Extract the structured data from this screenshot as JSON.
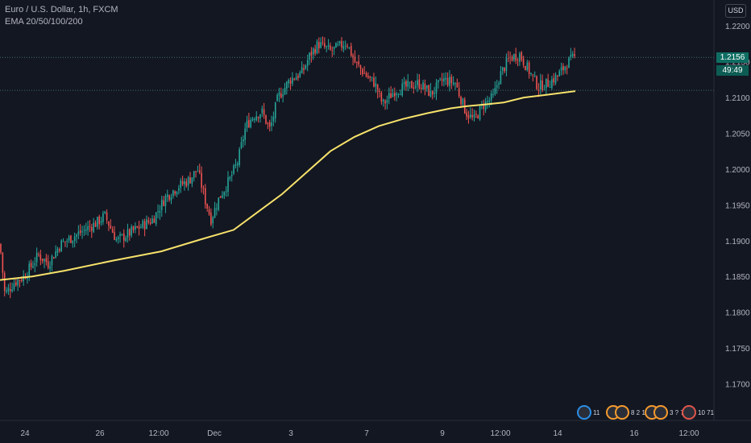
{
  "header": {
    "symbol_line": "Euro / U.S. Dollar, 1h, FXCM",
    "indicator_line": "EMA 20/50/100/200"
  },
  "toolbar": {
    "currency": "USD"
  },
  "price_tags": {
    "last_price": "1.2156",
    "countdown": "49:49"
  },
  "events": [
    {
      "count": "11",
      "color": "blue"
    },
    {
      "count": "8 2 12",
      "color": "orange"
    },
    {
      "count": "3 ? 7",
      "color": "orange"
    },
    {
      "count": "10 71",
      "color": "red"
    }
  ],
  "colors": {
    "up": "#26a69a",
    "down": "#ef5350",
    "ema": "#f7e26b",
    "grid": "#1e222d",
    "background": "#131722"
  },
  "chart_data": {
    "type": "candlestick",
    "title": "Euro / U.S. Dollar, 1h, FXCM",
    "y_ticks": [
      "1.2200",
      "1.2150",
      "1.2100",
      "1.2050",
      "1.2000",
      "1.1950",
      "1.1900",
      "1.1850",
      "1.1800",
      "1.1750",
      "1.1700"
    ],
    "x_ticks": [
      "24",
      "26",
      "12:00",
      "Dec",
      "3",
      "7",
      "9",
      "12:00",
      "14",
      "16",
      "12:00"
    ],
    "ylim": [
      1.166,
      1.2225
    ],
    "last_price": 1.2156,
    "reference_price": 1.211,
    "legend": "top-left",
    "grid": false,
    "close_path": [
      [
        0,
        1.1895
      ],
      [
        6,
        1.1825
      ],
      [
        18,
        1.1842
      ],
      [
        30,
        1.185
      ],
      [
        48,
        1.188
      ],
      [
        60,
        1.1868
      ],
      [
        75,
        1.1895
      ],
      [
        90,
        1.1905
      ],
      [
        105,
        1.1915
      ],
      [
        120,
        1.1925
      ],
      [
        130,
        1.1935
      ],
      [
        145,
        1.19
      ],
      [
        160,
        1.191
      ],
      [
        175,
        1.192
      ],
      [
        190,
        1.193
      ],
      [
        205,
        1.196
      ],
      [
        220,
        1.1975
      ],
      [
        235,
        1.1985
      ],
      [
        245,
        1.2
      ],
      [
        255,
        1.1955
      ],
      [
        262,
        1.193
      ],
      [
        272,
        1.196
      ],
      [
        285,
        1.1985
      ],
      [
        295,
        1.201
      ],
      [
        305,
        1.206
      ],
      [
        315,
        1.2075
      ],
      [
        325,
        1.208
      ],
      [
        335,
        1.2055
      ],
      [
        345,
        1.21
      ],
      [
        360,
        1.2125
      ],
      [
        375,
        1.2135
      ],
      [
        385,
        1.216
      ],
      [
        395,
        1.2175
      ],
      [
        410,
        1.2165
      ],
      [
        420,
        1.217
      ],
      [
        430,
        1.2178
      ],
      [
        440,
        1.215
      ],
      [
        455,
        1.213
      ],
      [
        465,
        1.212
      ],
      [
        475,
        1.209
      ],
      [
        490,
        1.211
      ],
      [
        505,
        1.2115
      ],
      [
        520,
        1.212
      ],
      [
        535,
        1.2105
      ],
      [
        550,
        1.2125
      ],
      [
        565,
        1.212
      ],
      [
        578,
        1.208
      ],
      [
        588,
        1.2068
      ],
      [
        600,
        1.209
      ],
      [
        612,
        1.21
      ],
      [
        620,
        1.213
      ],
      [
        632,
        1.2155
      ],
      [
        645,
        1.216
      ],
      [
        655,
        1.214
      ],
      [
        668,
        1.2115
      ],
      [
        680,
        1.212
      ],
      [
        692,
        1.213
      ],
      [
        705,
        1.215
      ],
      [
        714,
        1.2156
      ]
    ],
    "ema_path": [
      [
        0,
        1.1845
      ],
      [
        40,
        1.185
      ],
      [
        80,
        1.1858
      ],
      [
        140,
        1.1872
      ],
      [
        200,
        1.1885
      ],
      [
        250,
        1.1902
      ],
      [
        290,
        1.1915
      ],
      [
        320,
        1.194
      ],
      [
        350,
        1.1965
      ],
      [
        380,
        1.1995
      ],
      [
        410,
        1.2025
      ],
      [
        440,
        1.2045
      ],
      [
        470,
        1.206
      ],
      [
        500,
        1.207
      ],
      [
        530,
        1.2078
      ],
      [
        560,
        1.2085
      ],
      [
        580,
        1.2088
      ],
      [
        600,
        1.209
      ],
      [
        625,
        1.2093
      ],
      [
        650,
        1.21
      ],
      [
        680,
        1.2104
      ],
      [
        714,
        1.2109
      ]
    ]
  }
}
